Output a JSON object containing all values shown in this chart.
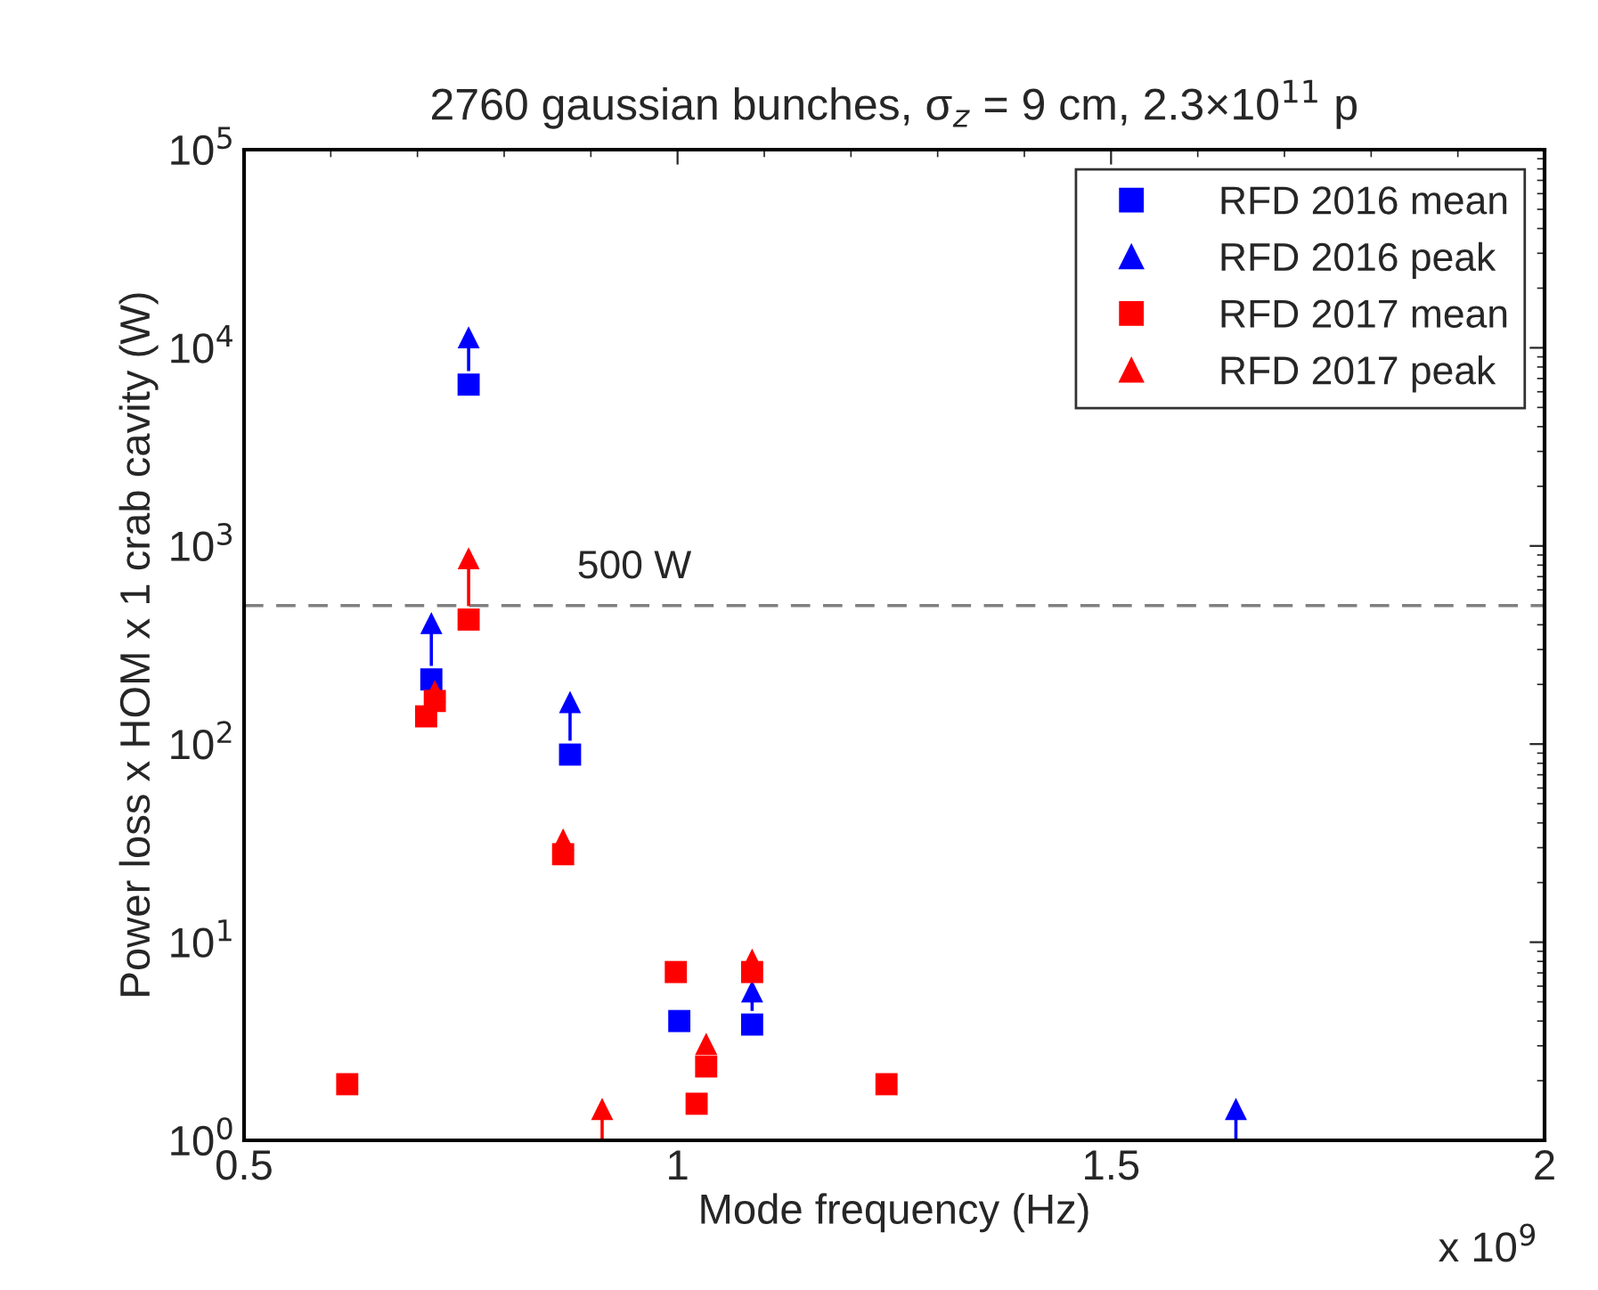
{
  "chart_data": {
    "type": "scatter",
    "title": "2760 gaussian bunches, σ$_{z}$ = 9 cm, 2.3×10$^{11}$ p",
    "xlabel": "Mode frequency (Hz)",
    "ylabel": "Power loss x HOM x 1 crab cavity (W)",
    "series": [
      {
        "name": "RFD 2016 mean",
        "color": "#0000ff",
        "marker": "square",
        "x": [
          0.716,
          0.759,
          0.876,
          1.002,
          1.086
        ],
        "values": [
          212,
          6520,
          88.5,
          4.0,
          3.84
        ]
      },
      {
        "name": "RFD 2016 peak",
        "color": "#0000ff",
        "marker": "triangle",
        "x": [
          0.716,
          0.759,
          0.876,
          1.086,
          1.644
        ],
        "values": [
          408,
          11300,
          163,
          5.65,
          1.44
        ],
        "errors": [
          [
            248,
            408
          ],
          [
            7630,
            11300
          ],
          [
            104,
            163
          ],
          [
            4.5,
            5.65
          ],
          [
            1,
            1.44
          ]
        ]
      },
      {
        "name": "RFD 2017 mean",
        "color": "#ff0000",
        "marker": "square",
        "x": [
          0.619,
          0.71,
          0.72,
          0.759,
          0.868,
          0.998,
          1.022,
          1.033,
          1.086,
          1.241
        ],
        "values": [
          1.92,
          138,
          165,
          425,
          27.8,
          7.07,
          1.53,
          2.36,
          7.07,
          1.92
        ]
      },
      {
        "name": "RFD 2017 peak",
        "color": "#ff0000",
        "marker": "triangle",
        "x": [
          0.72,
          0.759,
          0.868,
          0.913,
          1.033,
          1.086
        ],
        "values": [
          185,
          867,
          33,
          1.44,
          3.07,
          8.16
        ],
        "errors": [
          null,
          [
            497,
            867
          ],
          null,
          [
            1,
            1.44
          ],
          [
            2.76,
            3.07
          ],
          null
        ]
      }
    ],
    "log": "y",
    "xlim": [
      0.5,
      2
    ],
    "xticks": [
      0.5,
      1,
      1.5,
      2
    ],
    "ylim": [
      1,
      100000
    ],
    "yticks": [
      {
        "value": 1,
        "label": "10$^{0}$"
      },
      {
        "value": 10,
        "label": "10$^{1}$"
      },
      {
        "value": 100,
        "label": "10$^{2}$"
      },
      {
        "value": 1000,
        "label": "10$^{3}$"
      },
      {
        "value": 10000,
        "label": "10$^{4}$"
      },
      {
        "value": 100000,
        "label": "10$^{5}$"
      }
    ],
    "ref_lines": [
      {
        "axis": "y",
        "value": 500,
        "label": "500 W",
        "color": "#808080",
        "line_style": "dashed"
      }
    ],
    "annotations": [
      "x 10$^{9}$"
    ],
    "legend": "top right",
    "grid": false
  }
}
